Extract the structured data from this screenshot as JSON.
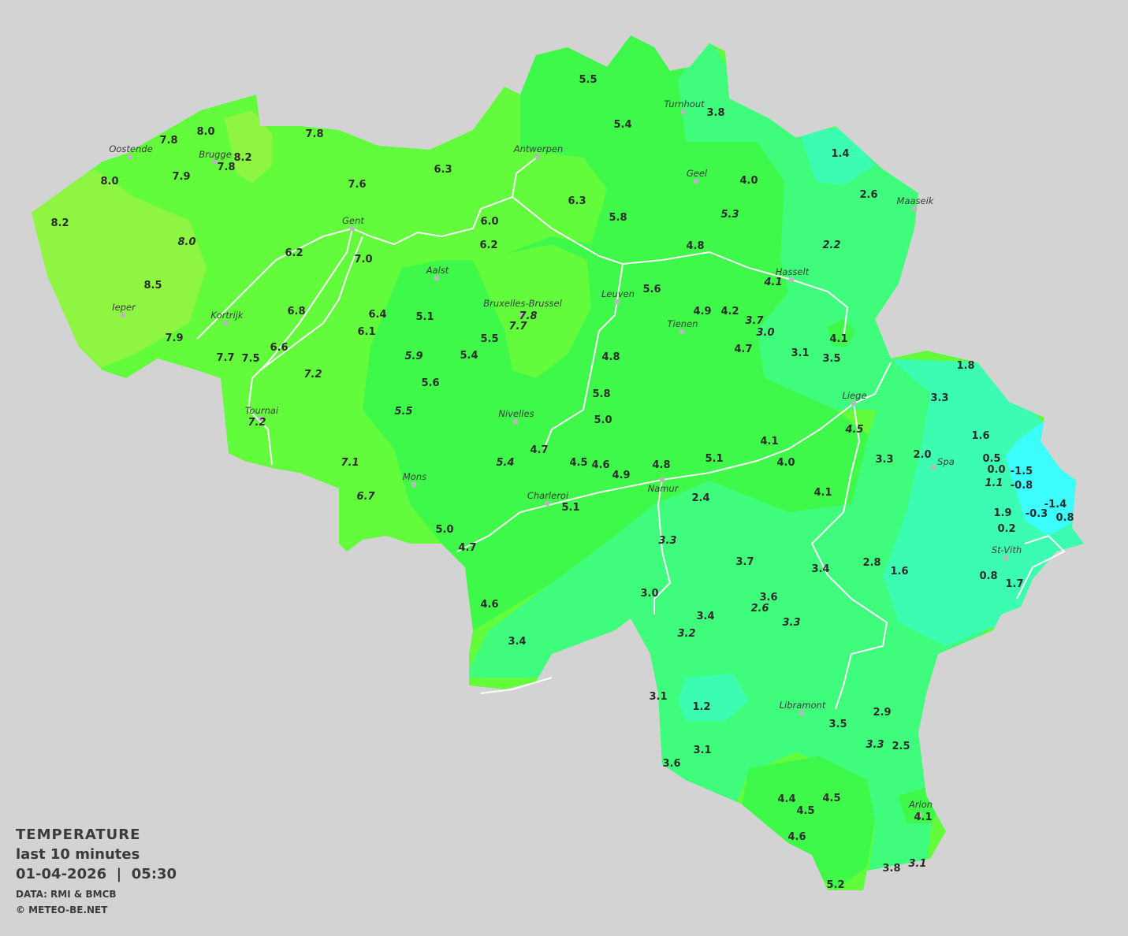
{
  "legend": {
    "title": "TEMPERATURE",
    "period": "last 10 minutes",
    "datetime": "01-04-2026  |  05:30",
    "source": "DATA: RMI & BMCB",
    "copyright": "© METEO-BE.NET"
  },
  "colors": {
    "background": "#d3d3d3",
    "band_8": "#8ef542",
    "band_6": "#62fc3c",
    "band_5": "#3ef84a",
    "band_3": "#3ffc7c",
    "band_1": "#3cfcb2",
    "band_0": "#3cfcfc",
    "river": "#ffffff"
  },
  "cities": [
    "Turnhout",
    "Antwerpen",
    "Oostende",
    "Brugge",
    "Geel",
    "Maaseik",
    "Gent",
    "Hasselt",
    "Aalst",
    "Leuven",
    "Bruxelles-Brussel",
    "Ieper",
    "Kortrijk",
    "Tienen",
    "Liege",
    "Tournai",
    "Nivelles",
    "Spa",
    "Mons",
    "Namur",
    "Charleroi",
    "St-Vith",
    "Libramont",
    "Arlon"
  ],
  "readings": [
    {
      "v": "5.5"
    },
    {
      "v": "5.4"
    },
    {
      "v": "3.8"
    },
    {
      "v": "1.4"
    },
    {
      "v": "2.6"
    },
    {
      "v": "8.0"
    },
    {
      "v": "7.8"
    },
    {
      "v": "7.8"
    },
    {
      "v": "8.2"
    },
    {
      "v": "7.8"
    },
    {
      "v": "7.9"
    },
    {
      "v": "8.0"
    },
    {
      "v": "6.3"
    },
    {
      "v": "7.6"
    },
    {
      "v": "4.0"
    },
    {
      "v": "6.3"
    },
    {
      "v": "5.8"
    },
    {
      "v": "5.3",
      "italic": true
    },
    {
      "v": "8.2"
    },
    {
      "v": "6.0"
    },
    {
      "v": "2.2",
      "italic": true
    },
    {
      "v": "8.0",
      "italic": true
    },
    {
      "v": "6.2"
    },
    {
      "v": "4.8"
    },
    {
      "v": "6.2"
    },
    {
      "v": "7.0"
    },
    {
      "v": "4.1",
      "italic": true
    },
    {
      "v": "5.6"
    },
    {
      "v": "8.5"
    },
    {
      "v": "6.8"
    },
    {
      "v": "6.4"
    },
    {
      "v": "5.1"
    },
    {
      "v": "7.8",
      "italic": true
    },
    {
      "v": "4.9"
    },
    {
      "v": "4.2"
    },
    {
      "v": "3.7",
      "italic": true
    },
    {
      "v": "7.7",
      "italic": true
    },
    {
      "v": "3.0",
      "italic": true
    },
    {
      "v": "6.1"
    },
    {
      "v": "7.9"
    },
    {
      "v": "5.5"
    },
    {
      "v": "4.1"
    },
    {
      "v": "6.6"
    },
    {
      "v": "4.7"
    },
    {
      "v": "3.1"
    },
    {
      "v": "7.7"
    },
    {
      "v": "7.5"
    },
    {
      "v": "5.9",
      "italic": true
    },
    {
      "v": "5.4"
    },
    {
      "v": "4.8"
    },
    {
      "v": "3.5"
    },
    {
      "v": "1.8"
    },
    {
      "v": "7.2",
      "italic": true
    },
    {
      "v": "5.6"
    },
    {
      "v": "5.8"
    },
    {
      "v": "3.3"
    },
    {
      "v": "5.5",
      "italic": true
    },
    {
      "v": "5.0"
    },
    {
      "v": "7.2",
      "italic": true
    },
    {
      "v": "4.5",
      "italic": true
    },
    {
      "v": "1.6"
    },
    {
      "v": "4.1"
    },
    {
      "v": "4.7"
    },
    {
      "v": "5.1"
    },
    {
      "v": "2.0"
    },
    {
      "v": "0.5"
    },
    {
      "v": "3.3"
    },
    {
      "v": "7.1",
      "italic": true
    },
    {
      "v": "5.4",
      "italic": true
    },
    {
      "v": "4.5"
    },
    {
      "v": "4.6"
    },
    {
      "v": "4.0"
    },
    {
      "v": "4.8"
    },
    {
      "v": "0.0"
    },
    {
      "v": "-1.5"
    },
    {
      "v": "4.9"
    },
    {
      "v": "1.1",
      "italic": true
    },
    {
      "v": "-0.8"
    },
    {
      "v": "4.1"
    },
    {
      "v": "6.7",
      "italic": true
    },
    {
      "v": "2.4"
    },
    {
      "v": "5.1"
    },
    {
      "v": "-1.4"
    },
    {
      "v": "1.9"
    },
    {
      "v": "-0.3"
    },
    {
      "v": "0.8"
    },
    {
      "v": "0.2"
    },
    {
      "v": "5.0"
    },
    {
      "v": "3.3",
      "italic": true
    },
    {
      "v": "4.7"
    },
    {
      "v": "3.7"
    },
    {
      "v": "2.8"
    },
    {
      "v": "3.4"
    },
    {
      "v": "1.6"
    },
    {
      "v": "0.8"
    },
    {
      "v": "1.7"
    },
    {
      "v": "3.0"
    },
    {
      "v": "3.6"
    },
    {
      "v": "4.6"
    },
    {
      "v": "2.6",
      "italic": true
    },
    {
      "v": "3.4"
    },
    {
      "v": "3.3",
      "italic": true
    },
    {
      "v": "3.2",
      "italic": true
    },
    {
      "v": "3.4"
    },
    {
      "v": "3.1"
    },
    {
      "v": "1.2"
    },
    {
      "v": "2.9"
    },
    {
      "v": "3.5"
    },
    {
      "v": "3.3",
      "italic": true
    },
    {
      "v": "2.5"
    },
    {
      "v": "3.1"
    },
    {
      "v": "3.6"
    },
    {
      "v": "4.4"
    },
    {
      "v": "4.5"
    },
    {
      "v": "4.5"
    },
    {
      "v": "4.1"
    },
    {
      "v": "4.6"
    },
    {
      "v": "3.8"
    },
    {
      "v": "3.1",
      "italic": true
    },
    {
      "v": "5.2"
    }
  ]
}
